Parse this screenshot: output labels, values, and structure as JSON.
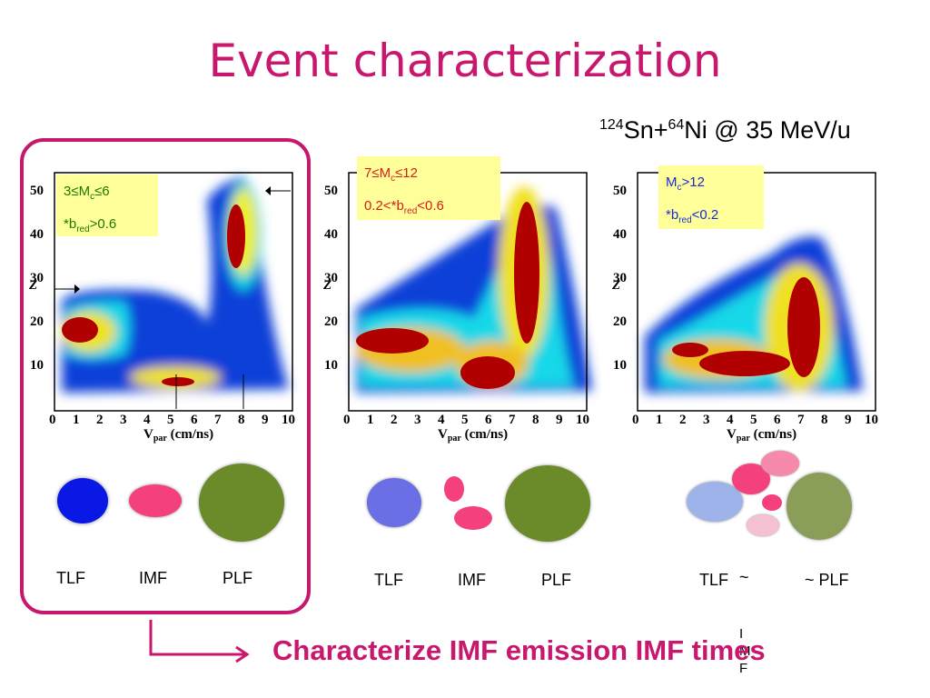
{
  "slide": {
    "title": "Event characterization",
    "reaction": {
      "a1": "124",
      "e1": "Sn+",
      "a2": "64",
      "e2": "Ni @ 35 MeV/u"
    },
    "bottom_text": "Characterize IMF emission IMF times",
    "stray_letters": [
      "I",
      "M",
      "F"
    ]
  },
  "colors": {
    "accent": "#c8186e",
    "label_bg": "#ffff99",
    "tlf": "#0a18e6",
    "imf": "#f5407e",
    "plf": "#6b8a2a"
  },
  "panels": [
    {
      "cond1_pre": "3≤M",
      "cond1_sub": "c",
      "cond1_post": "≤6",
      "cond2_pre": "*b",
      "cond2_sub": "red",
      "cond2_post": ">0.6",
      "cond_color": "#1a7a00",
      "labels": {
        "tlf": "TLF",
        "imf": "IMF",
        "plf": "PLF"
      }
    },
    {
      "cond1_pre": "7≤M",
      "cond1_sub": "c",
      "cond1_post": "≤12",
      "cond2_pre": "0.2<*b",
      "cond2_sub": "red",
      "cond2_post": "<0.6",
      "cond_color": "#d81b1b",
      "labels": {
        "tlf": "TLF",
        "imf": "IMF",
        "plf": "PLF"
      }
    },
    {
      "cond1_pre": "M",
      "cond1_sub": "c",
      "cond1_post": ">12",
      "cond2_pre": "*b",
      "cond2_sub": "red",
      "cond2_post": "<0.2",
      "cond_color": "#1a2ad8",
      "labels": {
        "tlf": "TLF",
        "tilde1": "~",
        "plf": "~ PLF"
      }
    }
  ],
  "axes": {
    "xlabel": "V",
    "xlabel_sub": "par",
    "xlabel_unit": "(cm/ns)",
    "ylabel": "Z",
    "xticks": [
      "0",
      "1",
      "2",
      "3",
      "4",
      "5",
      "6",
      "7",
      "8",
      "9",
      "10"
    ],
    "yticks": [
      "10",
      "20",
      "30",
      "40",
      "50"
    ]
  }
}
